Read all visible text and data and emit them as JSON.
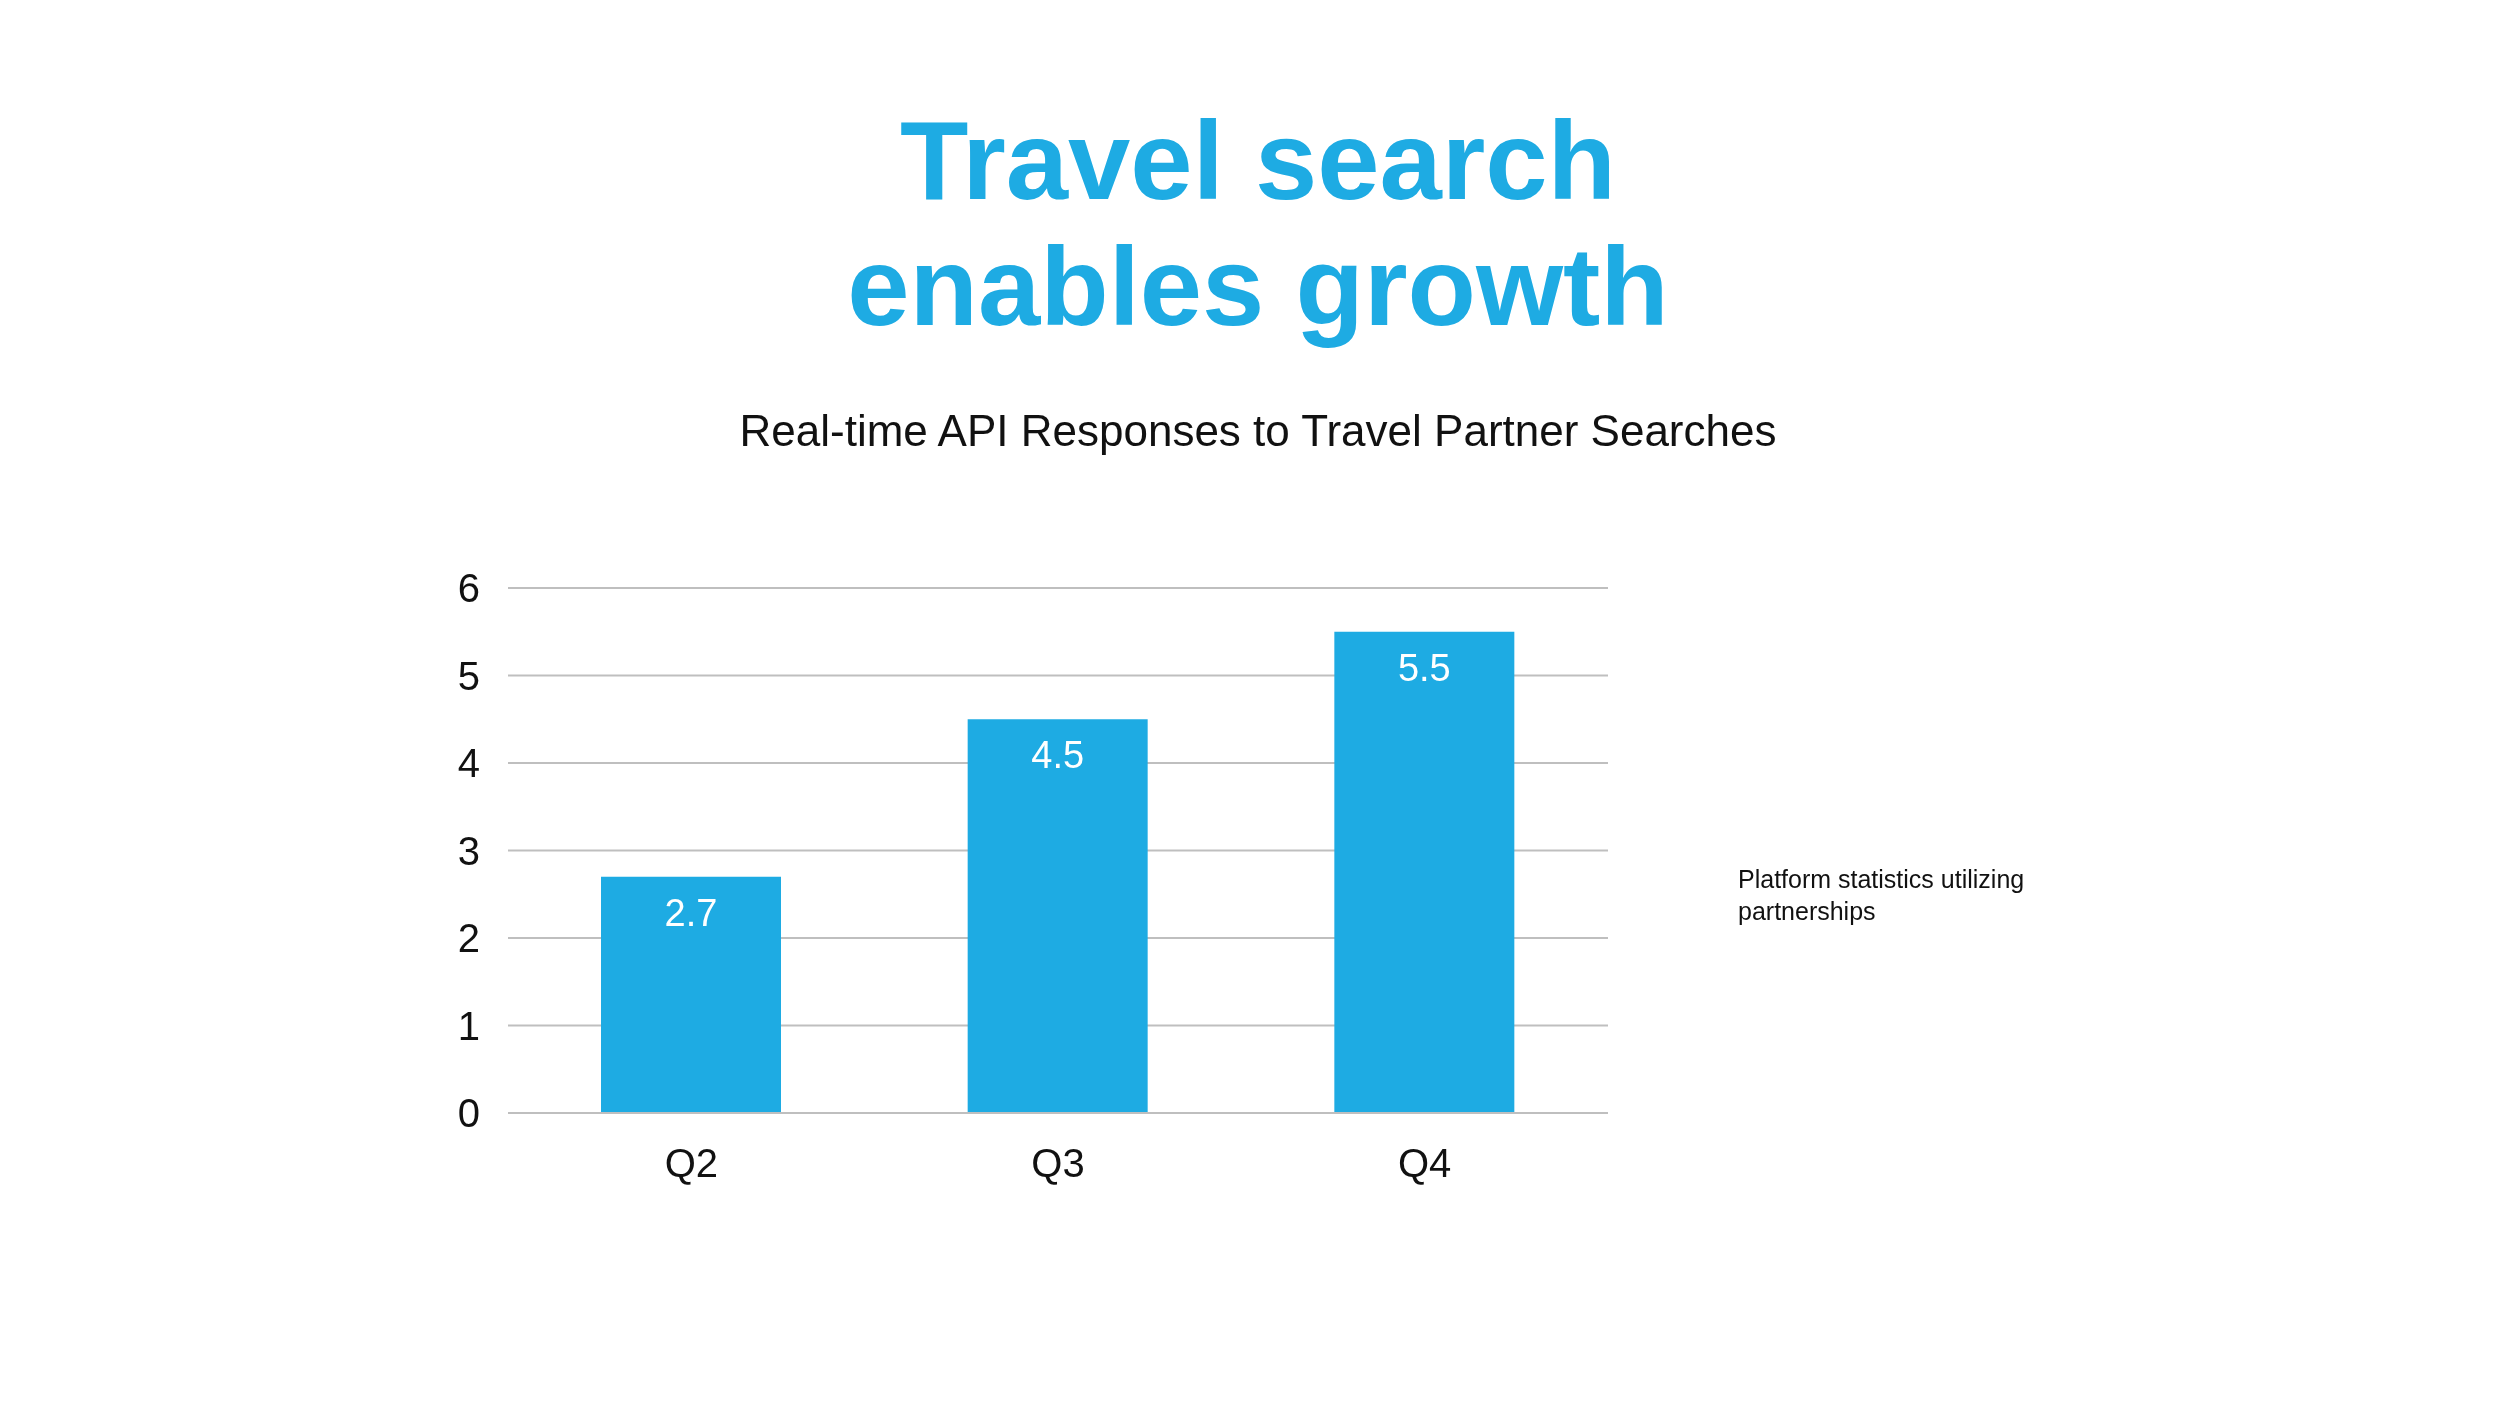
{
  "chart_data": {
    "type": "bar",
    "title": "Travel search enables growth",
    "subtitle": "Real-time API Responses to Travel Partner Searches",
    "categories": [
      "Q2",
      "Q3",
      "Q4"
    ],
    "values": [
      2.7,
      4.5,
      5.5
    ],
    "color": "#1eabe3",
    "ylim": [
      0,
      6
    ],
    "yticks": [
      0,
      1,
      2,
      3,
      4,
      5,
      6
    ],
    "grid": "y",
    "data_labels": true,
    "annotations": [
      "Platform statistics utilizing partnerships"
    ]
  }
}
